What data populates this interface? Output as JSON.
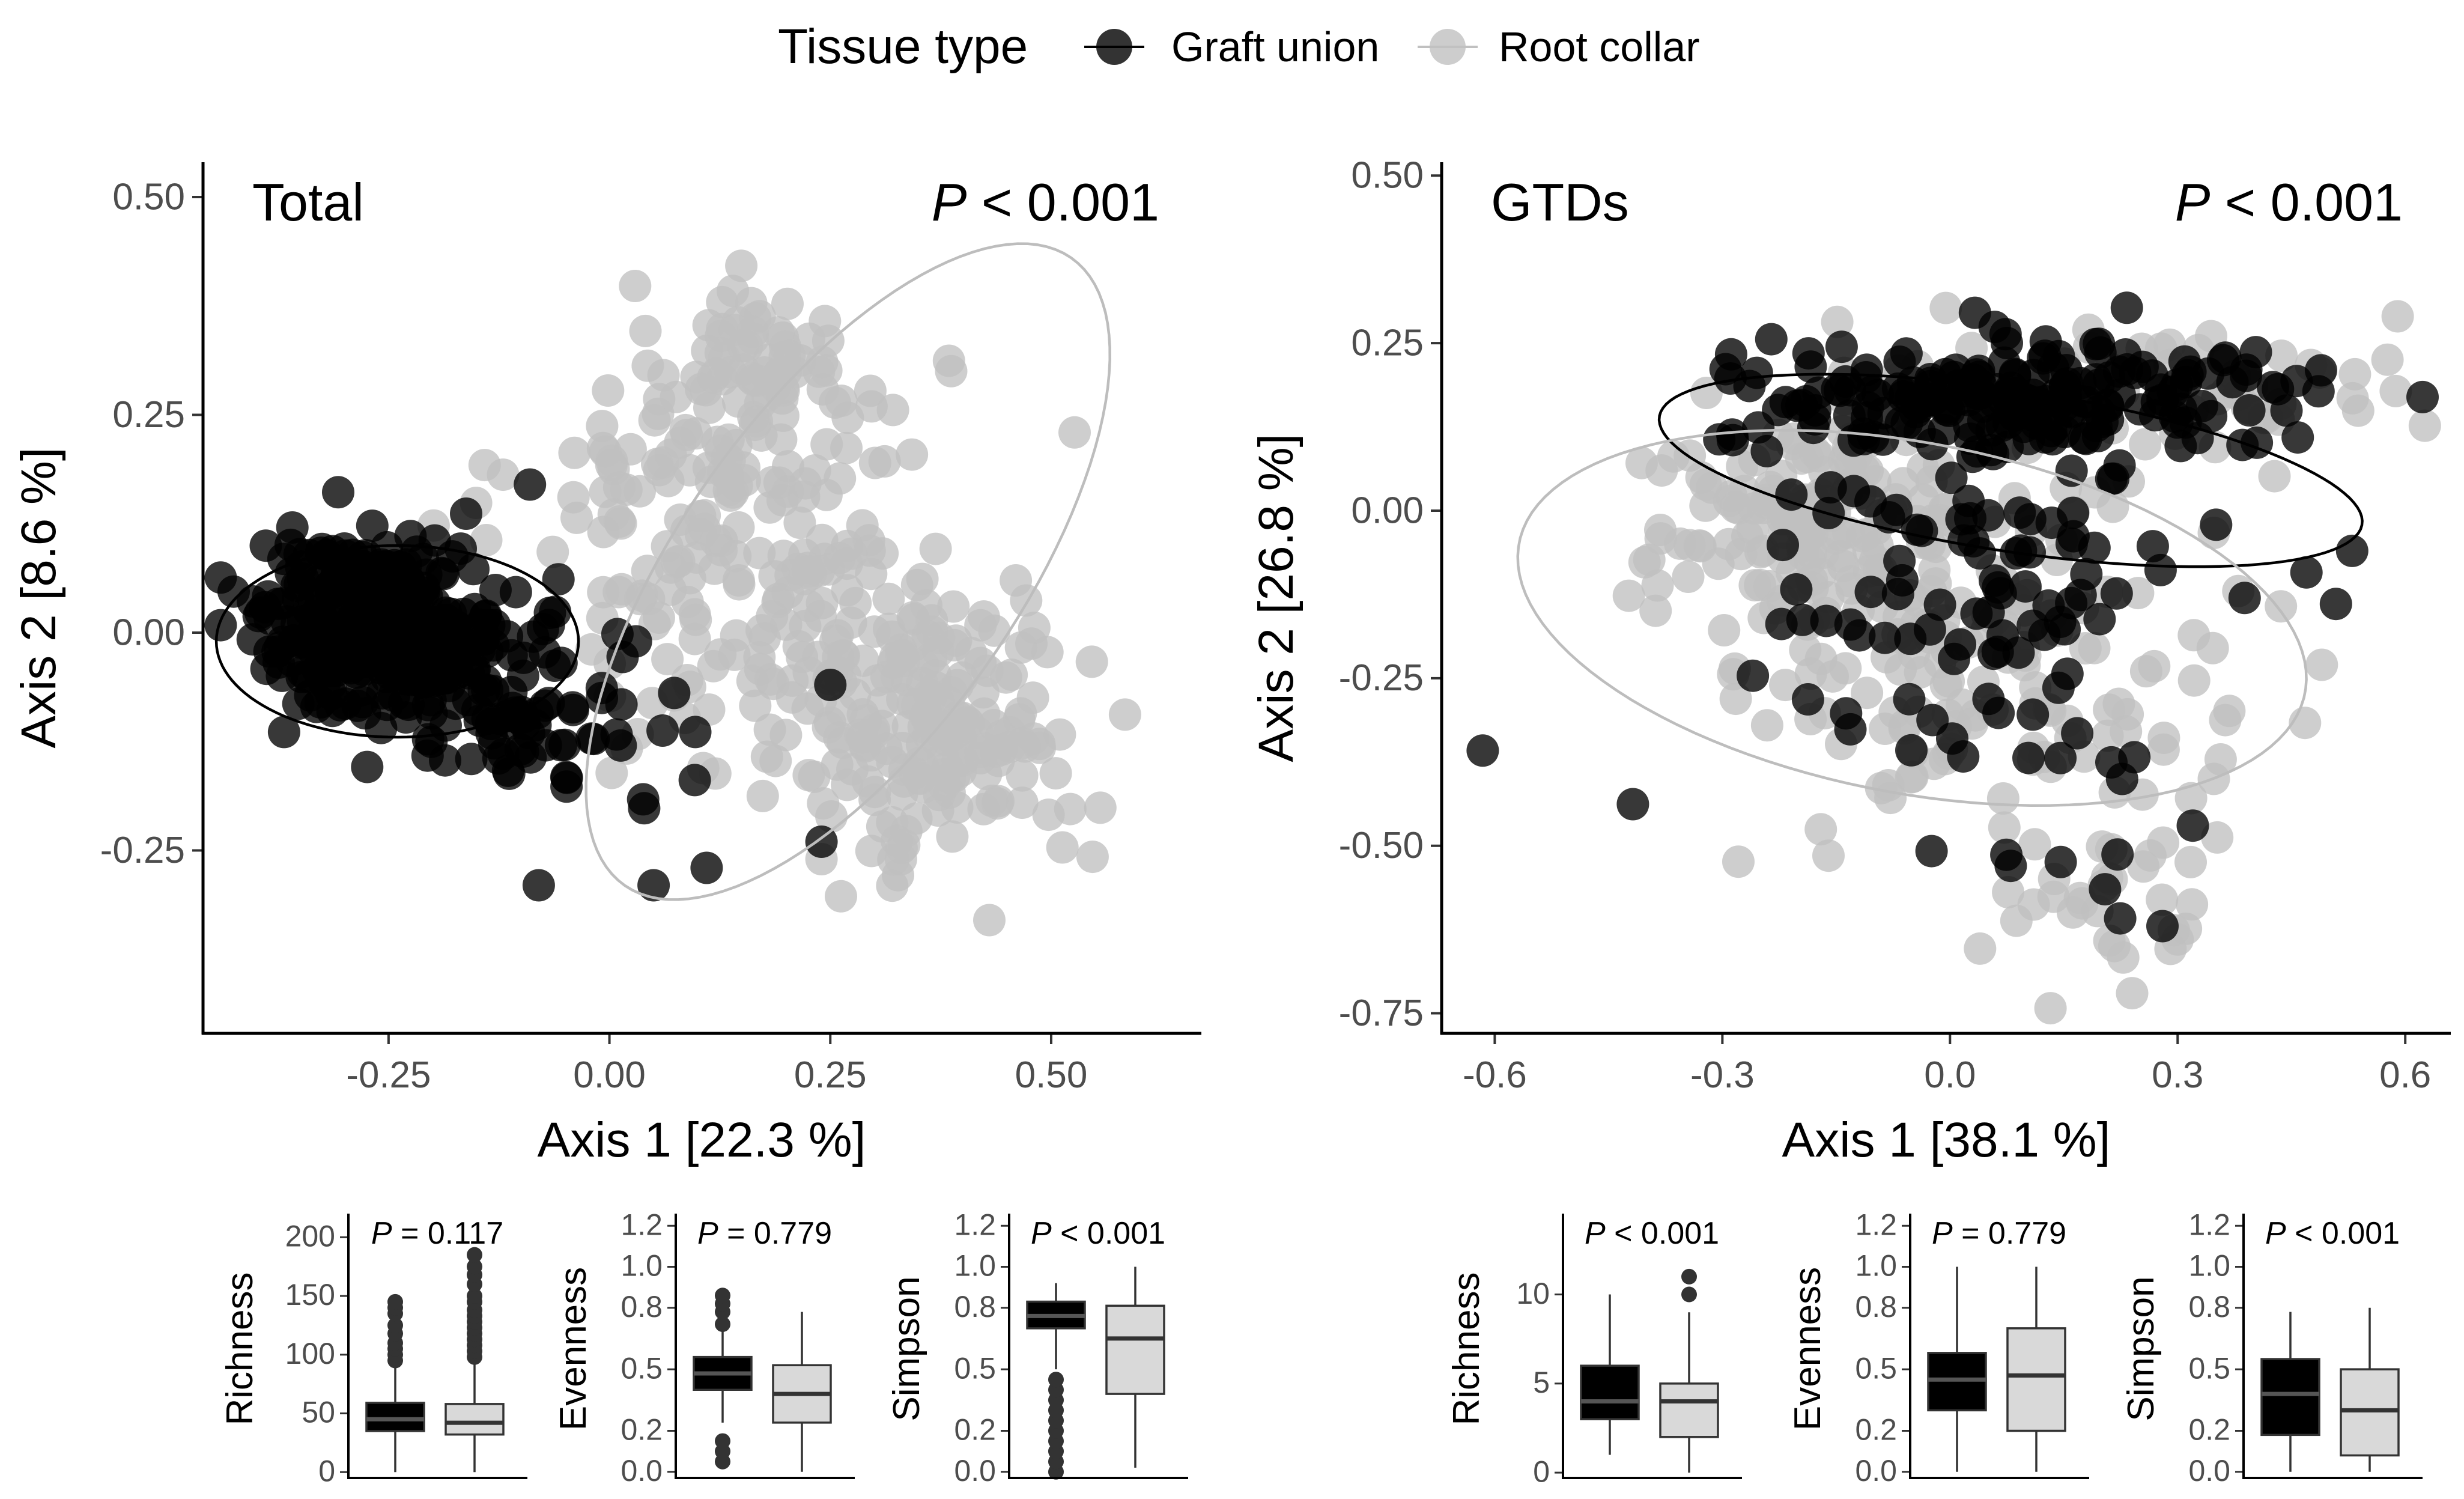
{
  "legend": {
    "title": "Tissue type",
    "items": [
      {
        "label": "Graft union",
        "color": "#000000"
      },
      {
        "label": "Root collar",
        "color": "#c0c0c0"
      }
    ]
  },
  "chart_data": [
    {
      "type": "scatter",
      "title": "Total",
      "annotation": {
        "italic": "P",
        "rest": " < 0.001"
      },
      "xlabel": "Axis 1 [22.3 %]",
      "ylabel": "Axis 2 [8.6 %]",
      "xlim": [
        -0.46,
        0.67
      ],
      "ylim": [
        -0.46,
        0.54
      ],
      "xticks": [
        -0.25,
        0.0,
        0.25,
        0.5
      ],
      "xticklabels": [
        "-0.25",
        "0.00",
        "0.25",
        "0.50"
      ],
      "yticks": [
        -0.25,
        0.0,
        0.25,
        0.5
      ],
      "yticklabels": [
        "-0.25",
        "0.00",
        "0.25",
        "0.50"
      ],
      "series": [
        {
          "name": "Graft union",
          "color": "#000000",
          "clusters": [
            {
              "center": [
                -0.26,
                0.01
              ],
              "spread": [
                0.07,
                0.05
              ],
              "n": 300
            },
            {
              "center": [
                -0.12,
                -0.08
              ],
              "spread": [
                0.06,
                0.05
              ],
              "n": 70
            },
            {
              "center": [
                0.02,
                -0.12
              ],
              "spread": [
                0.05,
                0.05
              ],
              "n": 12
            }
          ],
          "points": [
            [
              0.05,
              -0.29
            ],
            [
              0.25,
              -0.06
            ],
            [
              0.24,
              -0.24
            ],
            [
              0.11,
              -0.27
            ],
            [
              -0.08,
              -0.29
            ],
            [
              -0.09,
              0.17
            ],
            [
              0.03,
              -0.01
            ]
          ],
          "ellipse": {
            "center": [
              -0.24,
              -0.01
            ],
            "rx": 0.205,
            "ry": 0.11,
            "angle_deg": 0
          }
        },
        {
          "name": "Root collar",
          "color": "#c0c0c0",
          "clusters": [
            {
              "center": [
                0.15,
                0.32
              ],
              "spread": [
                0.05,
                0.04
              ],
              "n": 60
            },
            {
              "center": [
                0.14,
                0.16
              ],
              "spread": [
                0.12,
                0.09
              ],
              "n": 130
            },
            {
              "center": [
                0.38,
                -0.12
              ],
              "spread": [
                0.08,
                0.08
              ],
              "n": 160
            },
            {
              "center": [
                0.22,
                -0.02
              ],
              "spread": [
                0.14,
                0.08
              ],
              "n": 100
            }
          ],
          "points": [
            [
              0.46,
              0.06
            ],
            [
              0.43,
              -0.33
            ],
            [
              0.24,
              -0.26
            ],
            [
              0.33,
              -0.26
            ]
          ],
          "ellipse": {
            "center": [
              0.27,
              0.07
            ],
            "rx": 0.44,
            "ry": 0.19,
            "angle_deg": 55
          }
        }
      ]
    },
    {
      "type": "scatter",
      "title": "GTDs",
      "annotation": {
        "italic": "P",
        "rest": " < 0.001"
      },
      "xlabel": "Axis 1 [38.1 %]",
      "ylabel": "Axis 2 [26.8 %]",
      "xlim": [
        -0.67,
        0.66
      ],
      "ylim": [
        -0.78,
        0.52
      ],
      "xticks": [
        -0.6,
        -0.3,
        0.0,
        0.3,
        0.6
      ],
      "xticklabels": [
        "-0.6",
        "-0.3",
        "0.0",
        "0.3",
        "0.6"
      ],
      "yticks": [
        -0.75,
        -0.5,
        -0.25,
        0.0,
        0.25,
        0.5
      ],
      "yticklabels": [
        "-0.75",
        "-0.50",
        "-0.25",
        "0.00",
        "0.25",
        "0.50"
      ],
      "series": [
        {
          "name": "Graft union",
          "color": "#000000",
          "clusters": [
            {
              "center": [
                0.1,
                0.17
              ],
              "spread": [
                0.2,
                0.04
              ],
              "n": 190
            },
            {
              "center": [
                0.05,
                -0.05
              ],
              "spread": [
                0.17,
                0.11
              ],
              "n": 90
            },
            {
              "center": [
                0.12,
                -0.35
              ],
              "spread": [
                0.13,
                0.1
              ],
              "n": 25
            }
          ],
          "points": [
            [
              0.53,
              -0.06
            ],
            [
              0.28,
              -0.62
            ],
            [
              0.32,
              -0.47
            ],
            [
              0.08,
              -0.53
            ]
          ],
          "ellipse": {
            "center": [
              0.08,
              0.06
            ],
            "rx": 0.47,
            "ry": 0.12,
            "angle_deg": -10
          }
        },
        {
          "name": "Root collar",
          "color": "#c0c0c0",
          "clusters": [
            {
              "center": [
                -0.18,
                -0.02
              ],
              "spread": [
                0.11,
                0.08
              ],
              "n": 150
            },
            {
              "center": [
                0.05,
                -0.25
              ],
              "spread": [
                0.15,
                0.12
              ],
              "n": 130
            },
            {
              "center": [
                0.25,
                0.18
              ],
              "spread": [
                0.18,
                0.06
              ],
              "n": 60
            },
            {
              "center": [
                0.2,
                -0.55
              ],
              "spread": [
                0.08,
                0.08
              ],
              "n": 30
            }
          ],
          "points": [
            [
              0.59,
              0.29
            ],
            [
              0.49,
              -0.23
            ],
            [
              0.24,
              -0.72
            ],
            [
              0.3,
              -0.64
            ],
            [
              -0.38,
              0.06
            ],
            [
              0.38,
              -0.12
            ]
          ],
          "ellipse": {
            "center": [
              -0.05,
              -0.16
            ],
            "rx": 0.53,
            "ry": 0.26,
            "angle_deg": -13
          }
        }
      ]
    },
    {
      "type": "box",
      "ylabel": "Richness",
      "annotation": {
        "italic": "P",
        "rest": " = 0.117"
      },
      "ylim": [
        -5,
        215
      ],
      "yticks": [
        0,
        50,
        100,
        150,
        200
      ],
      "yticklabels": [
        "0",
        "50",
        "100",
        "150",
        "200"
      ],
      "boxes": [
        {
          "group": "Graft union",
          "color": "#000000",
          "whisker_low": 0,
          "q1": 35,
          "median": 45,
          "q3": 59,
          "whisker_high": 90,
          "outliers": [
            95,
            100,
            105,
            110,
            118,
            125,
            135,
            140,
            145
          ]
        },
        {
          "group": "Root collar",
          "color": "#d9d9d9",
          "whisker_low": 0,
          "q1": 32,
          "median": 42,
          "q3": 58,
          "whisker_high": 95,
          "outliers": [
            98,
            103,
            108,
            113,
            118,
            123,
            128,
            133,
            138,
            145,
            150,
            160,
            168,
            175,
            185
          ]
        }
      ]
    },
    {
      "type": "box",
      "ylabel": "Evenness",
      "annotation": {
        "italic": "P",
        "rest": " = 0.779"
      },
      "ylim": [
        -0.03,
        1.23
      ],
      "yticks": [
        0.0,
        0.2,
        0.5,
        0.8,
        1.0,
        1.2
      ],
      "yticklabels": [
        "0.0",
        "0.2",
        "0.5",
        "0.8",
        "1.0",
        "1.2"
      ],
      "boxes": [
        {
          "group": "Graft union",
          "color": "#000000",
          "whisker_low": 0.24,
          "q1": 0.4,
          "median": 0.48,
          "q3": 0.56,
          "whisker_high": 0.7,
          "outliers": [
            0.05,
            0.1,
            0.15,
            0.72,
            0.78,
            0.82,
            0.86
          ]
        },
        {
          "group": "Root collar",
          "color": "#d9d9d9",
          "whisker_low": 0.0,
          "q1": 0.24,
          "median": 0.38,
          "q3": 0.52,
          "whisker_high": 0.78,
          "outliers": []
        }
      ]
    },
    {
      "type": "box",
      "ylabel": "Simpson",
      "annotation": {
        "italic": "P",
        "rest": " < 0.001"
      },
      "ylim": [
        -0.03,
        1.23
      ],
      "yticks": [
        0.0,
        0.2,
        0.5,
        0.8,
        1.0,
        1.2
      ],
      "yticklabels": [
        "0.0",
        "0.2",
        "0.5",
        "0.8",
        "1.0",
        "1.2"
      ],
      "boxes": [
        {
          "group": "Graft union",
          "color": "#000000",
          "whisker_low": 0.5,
          "q1": 0.7,
          "median": 0.76,
          "q3": 0.83,
          "whisker_high": 0.92,
          "outliers": [
            0.0,
            0.05,
            0.1,
            0.15,
            0.2,
            0.25,
            0.3,
            0.35,
            0.4,
            0.45
          ]
        },
        {
          "group": "Root collar",
          "color": "#d9d9d9",
          "whisker_low": 0.02,
          "q1": 0.38,
          "median": 0.65,
          "q3": 0.81,
          "whisker_high": 1.0,
          "outliers": []
        }
      ]
    },
    {
      "type": "box",
      "ylabel": "Richness",
      "annotation": {
        "italic": "P",
        "rest": " < 0.001"
      },
      "ylim": [
        -0.3,
        14.2
      ],
      "yticks": [
        0,
        5,
        10
      ],
      "yticklabels": [
        "0",
        "5",
        "10"
      ],
      "boxes": [
        {
          "group": "Graft union",
          "color": "#000000",
          "whisker_low": 1,
          "q1": 3,
          "median": 4,
          "q3": 6,
          "whisker_high": 10,
          "outliers": []
        },
        {
          "group": "Root collar",
          "color": "#d9d9d9",
          "whisker_low": 0,
          "q1": 2,
          "median": 4,
          "q3": 5,
          "whisker_high": 9,
          "outliers": [
            10,
            11
          ]
        }
      ]
    },
    {
      "type": "box",
      "ylabel": "Evenness",
      "annotation": {
        "italic": "P",
        "rest": " = 0.779"
      },
      "ylim": [
        -0.03,
        1.23
      ],
      "yticks": [
        0.0,
        0.2,
        0.5,
        0.8,
        1.0,
        1.2
      ],
      "yticklabels": [
        "0.0",
        "0.2",
        "0.5",
        "0.8",
        "1.0",
        "1.2"
      ],
      "boxes": [
        {
          "group": "Graft union",
          "color": "#000000",
          "whisker_low": 0.0,
          "q1": 0.3,
          "median": 0.45,
          "q3": 0.58,
          "whisker_high": 1.0,
          "outliers": []
        },
        {
          "group": "Root collar",
          "color": "#d9d9d9",
          "whisker_low": 0.0,
          "q1": 0.2,
          "median": 0.47,
          "q3": 0.7,
          "whisker_high": 1.0,
          "outliers": []
        }
      ]
    },
    {
      "type": "box",
      "ylabel": "Simpson",
      "annotation": {
        "italic": "P",
        "rest": " < 0.001"
      },
      "ylim": [
        -0.03,
        1.23
      ],
      "yticks": [
        0.0,
        0.2,
        0.5,
        0.8,
        1.0,
        1.2
      ],
      "yticklabels": [
        "0.0",
        "0.2",
        "0.5",
        "0.8",
        "1.0",
        "1.2"
      ],
      "boxes": [
        {
          "group": "Graft union",
          "color": "#000000",
          "whisker_low": 0.0,
          "q1": 0.18,
          "median": 0.38,
          "q3": 0.55,
          "whisker_high": 0.78,
          "outliers": []
        },
        {
          "group": "Root collar",
          "color": "#d9d9d9",
          "whisker_low": 0.0,
          "q1": 0.08,
          "median": 0.3,
          "q3": 0.5,
          "whisker_high": 0.8,
          "outliers": []
        }
      ]
    }
  ]
}
